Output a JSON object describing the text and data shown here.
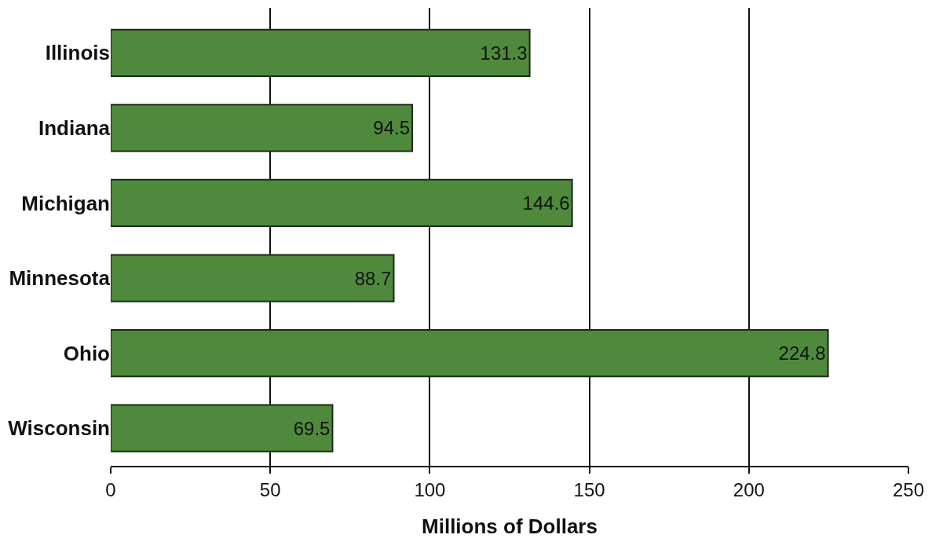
{
  "chart_data": {
    "type": "bar",
    "orientation": "horizontal",
    "xlabel": "Millions of Dollars",
    "categories": [
      "Illinois",
      "Indiana",
      "Michigan",
      "Minnesota",
      "Ohio",
      "Wisconsin"
    ],
    "values": [
      131.3,
      94.5,
      144.6,
      88.7,
      224.8,
      69.5
    ],
    "color": "#4f8a3c",
    "xlim": [
      0,
      250
    ],
    "xticks": [
      0,
      50,
      100,
      150,
      200,
      250
    ],
    "grid": "x",
    "data_labels": true
  }
}
